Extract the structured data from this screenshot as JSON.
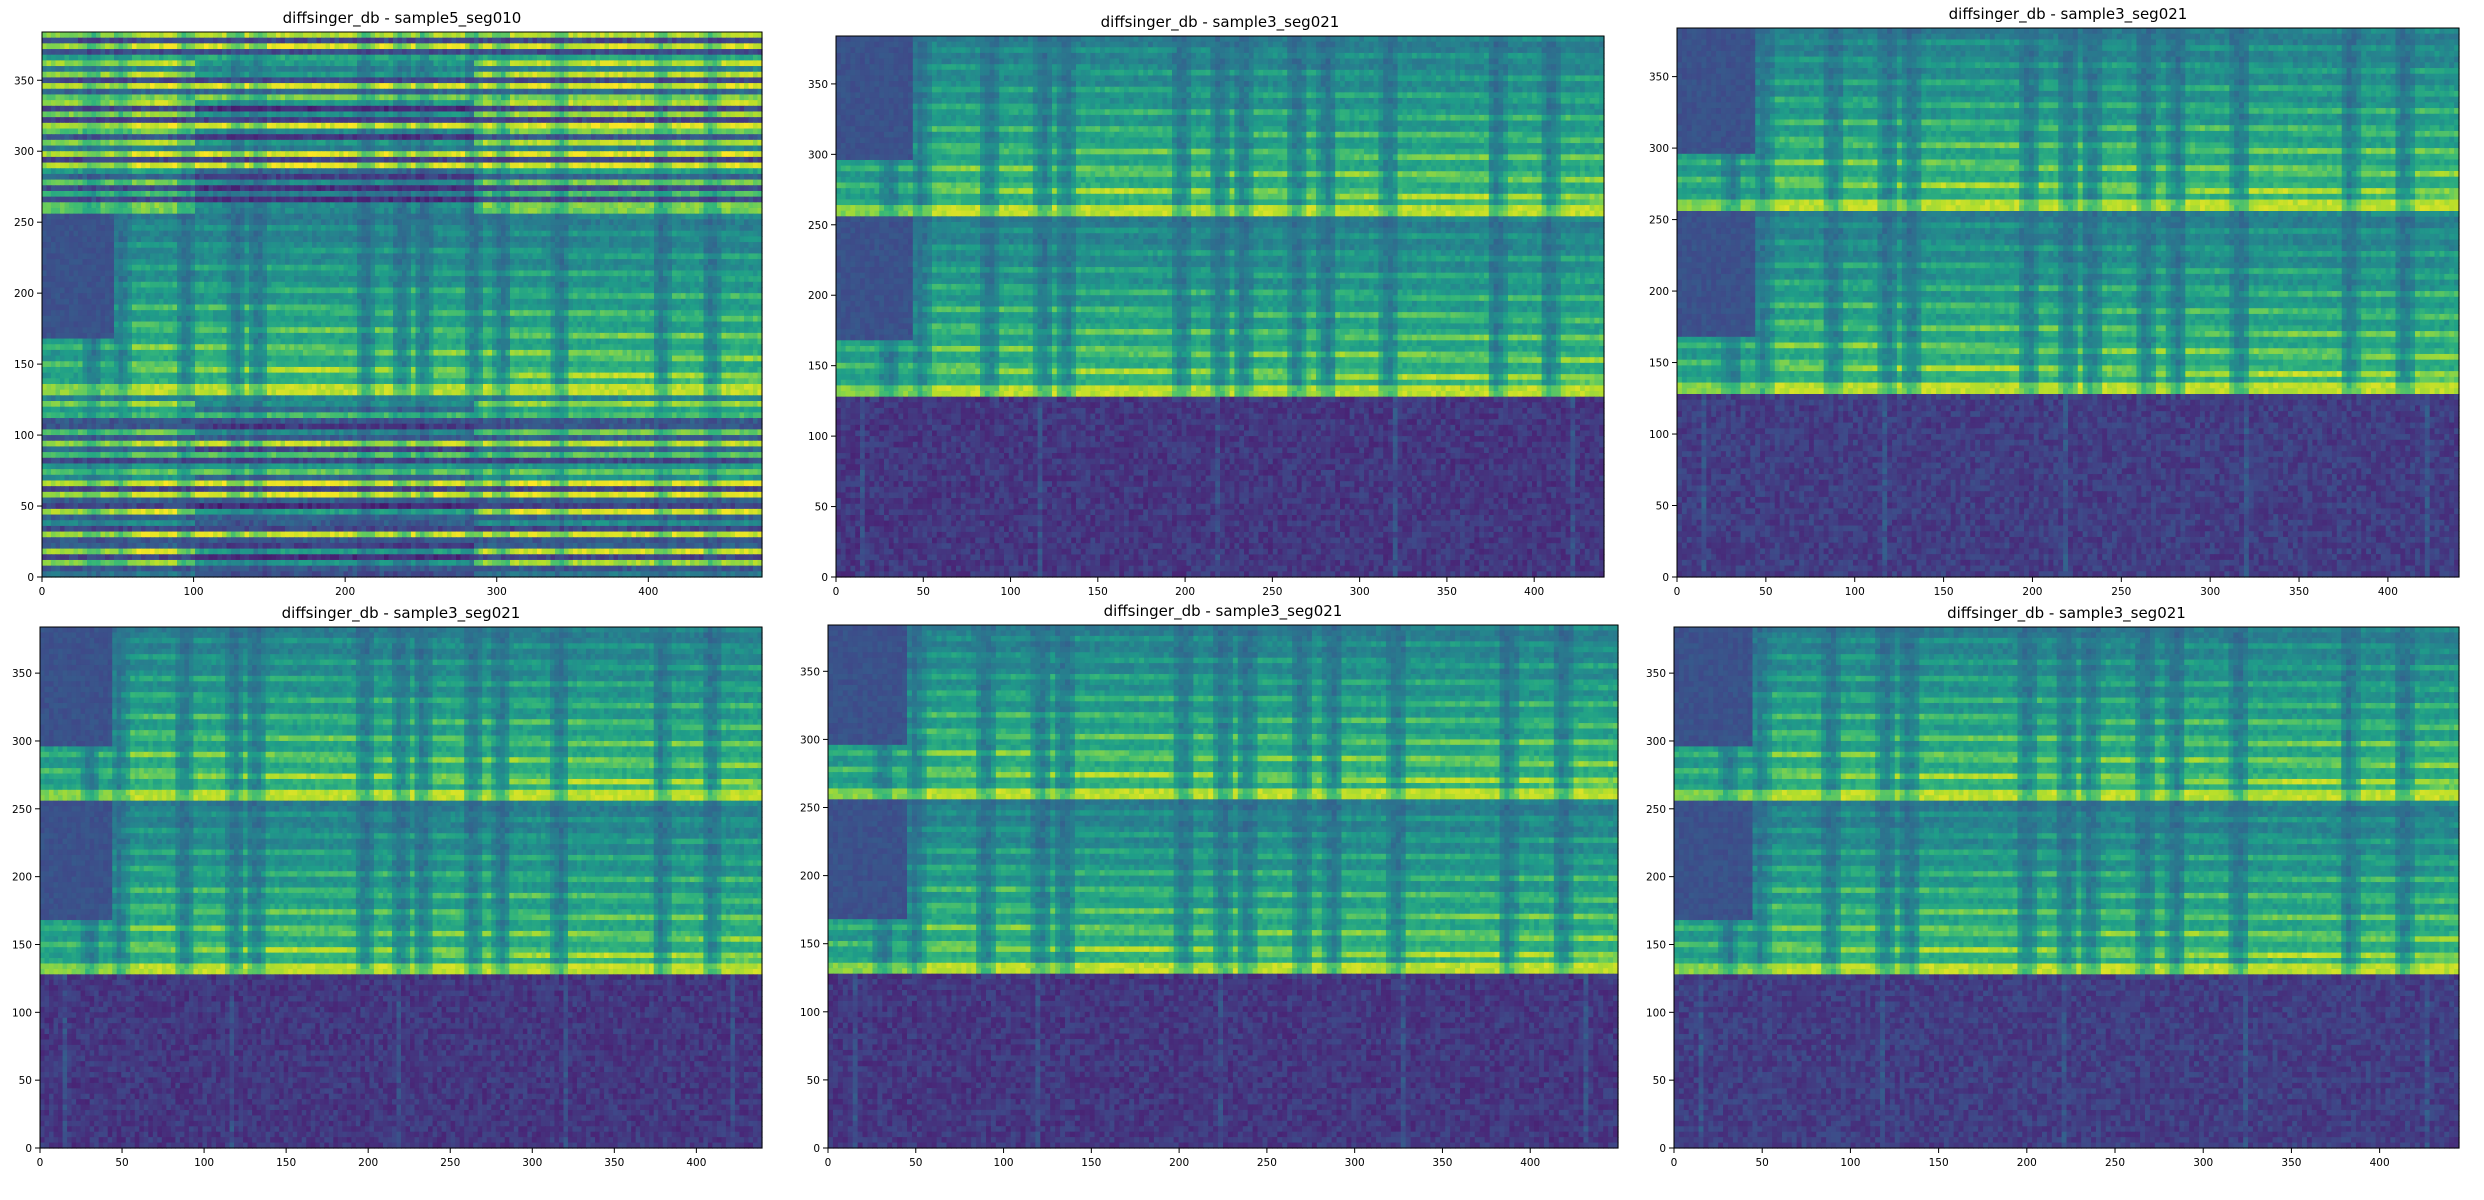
{
  "figure": {
    "layout": "2 rows x 3 columns of spectrogram panels"
  },
  "colormap": {
    "name": "viridis",
    "stops": [
      "#440154",
      "#482878",
      "#3e4a89",
      "#31688e",
      "#26828e",
      "#1f9e89",
      "#35b779",
      "#6ece58",
      "#b5de2b",
      "#fde725"
    ]
  },
  "chart_data": [
    {
      "type": "heatmap",
      "title": "diffsinger_db - sample5_seg010",
      "xlabel": "",
      "ylabel": "",
      "xlim": [
        0,
        475
      ],
      "ylim": [
        0,
        384
      ],
      "xticks": [
        0,
        100,
        200,
        300,
        400
      ],
      "yticks": [
        0,
        50,
        100,
        150,
        200,
        250,
        300,
        350
      ],
      "grid": false,
      "pattern": "bands",
      "bands": [
        {
          "y_from": 0,
          "y_to": 128,
          "kind": "striped",
          "level": 0.55
        },
        {
          "y_from": 128,
          "y_to": 256,
          "kind": "harmonic",
          "level": 0.4
        },
        {
          "y_from": 256,
          "y_to": 384,
          "kind": "striped",
          "level": 0.55
        }
      ]
    },
    {
      "type": "heatmap",
      "title": "diffsinger_db - sample3_seg021",
      "xlabel": "",
      "ylabel": "",
      "xlim": [
        0,
        440
      ],
      "ylim": [
        0,
        384
      ],
      "xticks": [
        0,
        50,
        100,
        150,
        200,
        250,
        300,
        350,
        400
      ],
      "yticks": [
        0,
        50,
        100,
        150,
        200,
        250,
        300,
        350
      ],
      "grid": false,
      "pattern": "bands",
      "bands": [
        {
          "y_from": 0,
          "y_to": 128,
          "kind": "noise",
          "level": 0.1
        },
        {
          "y_from": 128,
          "y_to": 256,
          "kind": "harmonic",
          "level": 0.45
        },
        {
          "y_from": 256,
          "y_to": 384,
          "kind": "harmonic",
          "level": 0.45
        }
      ]
    },
    {
      "type": "heatmap",
      "title": "diffsinger_db - sample3_seg021",
      "xlabel": "",
      "ylabel": "",
      "xlim": [
        0,
        440
      ],
      "ylim": [
        0,
        384
      ],
      "xticks": [
        0,
        50,
        100,
        150,
        200,
        250,
        300,
        350,
        400
      ],
      "yticks": [
        0,
        50,
        100,
        150,
        200,
        250,
        300,
        350
      ],
      "grid": false,
      "pattern": "bands",
      "bands": [
        {
          "y_from": 0,
          "y_to": 128,
          "kind": "noise",
          "level": 0.12
        },
        {
          "y_from": 128,
          "y_to": 256,
          "kind": "harmonic",
          "level": 0.45
        },
        {
          "y_from": 256,
          "y_to": 384,
          "kind": "harmonic",
          "level": 0.45
        }
      ]
    },
    {
      "type": "heatmap",
      "title": "diffsinger_db - sample3_seg021",
      "xlabel": "",
      "ylabel": "",
      "xlim": [
        0,
        440
      ],
      "ylim": [
        0,
        384
      ],
      "xticks": [
        0,
        50,
        100,
        150,
        200,
        250,
        300,
        350,
        400
      ],
      "yticks": [
        0,
        50,
        100,
        150,
        200,
        250,
        300,
        350
      ],
      "grid": false,
      "pattern": "bands",
      "bands": [
        {
          "y_from": 0,
          "y_to": 128,
          "kind": "noise",
          "level": 0.1
        },
        {
          "y_from": 128,
          "y_to": 256,
          "kind": "harmonic",
          "level": 0.45
        },
        {
          "y_from": 256,
          "y_to": 384,
          "kind": "harmonic",
          "level": 0.45
        }
      ]
    },
    {
      "type": "heatmap",
      "title": "diffsinger_db - sample3_seg021",
      "xlabel": "",
      "ylabel": "",
      "xlim": [
        0,
        450
      ],
      "ylim": [
        0,
        384
      ],
      "xticks": [
        0,
        50,
        100,
        150,
        200,
        250,
        300,
        350,
        400
      ],
      "yticks": [
        0,
        50,
        100,
        150,
        200,
        250,
        300,
        350
      ],
      "grid": false,
      "pattern": "bands",
      "bands": [
        {
          "y_from": 0,
          "y_to": 128,
          "kind": "noise",
          "level": 0.1
        },
        {
          "y_from": 128,
          "y_to": 256,
          "kind": "harmonic",
          "level": 0.45
        },
        {
          "y_from": 256,
          "y_to": 384,
          "kind": "harmonic",
          "level": 0.45
        }
      ]
    },
    {
      "type": "heatmap",
      "title": "diffsinger_db - sample3_seg021",
      "xlabel": "",
      "ylabel": "",
      "xlim": [
        0,
        445
      ],
      "ylim": [
        0,
        384
      ],
      "xticks": [
        0,
        50,
        100,
        150,
        200,
        250,
        300,
        350,
        400
      ],
      "yticks": [
        0,
        50,
        100,
        150,
        200,
        250,
        300,
        350
      ],
      "grid": false,
      "pattern": "bands",
      "bands": [
        {
          "y_from": 0,
          "y_to": 128,
          "kind": "noise",
          "level": 0.12
        },
        {
          "y_from": 128,
          "y_to": 256,
          "kind": "harmonic",
          "level": 0.45
        },
        {
          "y_from": 256,
          "y_to": 384,
          "kind": "harmonic",
          "level": 0.45
        }
      ]
    }
  ]
}
